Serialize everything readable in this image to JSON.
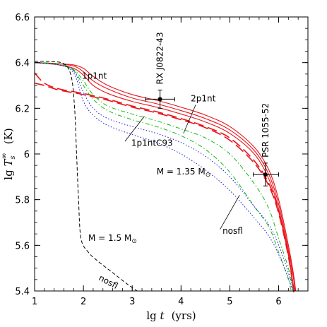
{
  "chart_data": {
    "type": "line",
    "title": "",
    "xlabel": {
      "prefix": "lg ",
      "var": "t",
      "unit": "(yrs)"
    },
    "ylabel": {
      "prefix": "lg ",
      "var": "T",
      "sub": "s",
      "sup": "∞",
      "unit": "(K)"
    },
    "xlim": [
      1,
      6.6
    ],
    "ylim": [
      5.4,
      6.6
    ],
    "xticks": [
      1,
      2,
      3,
      4,
      5,
      6
    ],
    "xtick_labels": [
      "1",
      "2",
      "3",
      "4",
      "5",
      "6"
    ],
    "yticks": [
      5.4,
      5.6,
      5.8,
      6.0,
      6.2,
      6.4,
      6.6
    ],
    "ytick_labels": [
      "5.4",
      "5.6",
      "5.8",
      "6",
      "6.2",
      "6.4",
      "6.6"
    ],
    "grid": false,
    "series": [
      {
        "name": "1p1nt",
        "color": "#e8141b",
        "dash": "",
        "width": 1.1,
        "points": [
          [
            1,
            6.4
          ],
          [
            1.5,
            6.395
          ],
          [
            1.8,
            6.39
          ],
          [
            2.0,
            6.375
          ],
          [
            2.2,
            6.34
          ],
          [
            2.5,
            6.3
          ],
          [
            3.0,
            6.26
          ],
          [
            3.5,
            6.235
          ],
          [
            4.0,
            6.205
          ],
          [
            4.5,
            6.17
          ],
          [
            5.0,
            6.12
          ],
          [
            5.5,
            6.03
          ],
          [
            5.8,
            5.93
          ],
          [
            6.0,
            5.8
          ],
          [
            6.2,
            5.6
          ],
          [
            6.3,
            5.48
          ],
          [
            6.35,
            5.4
          ]
        ]
      },
      {
        "name": "1p1nt",
        "color": "#e8141b",
        "dash": "",
        "width": 1.1,
        "points": [
          [
            1,
            6.4
          ],
          [
            1.5,
            6.395
          ],
          [
            1.8,
            6.385
          ],
          [
            2.0,
            6.36
          ],
          [
            2.2,
            6.32
          ],
          [
            2.5,
            6.285
          ],
          [
            3.0,
            6.245
          ],
          [
            3.5,
            6.22
          ],
          [
            4.0,
            6.19
          ],
          [
            4.5,
            6.155
          ],
          [
            5.0,
            6.105
          ],
          [
            5.5,
            6.015
          ],
          [
            5.8,
            5.91
          ],
          [
            6.0,
            5.78
          ],
          [
            6.2,
            5.58
          ],
          [
            6.3,
            5.46
          ],
          [
            6.34,
            5.4
          ]
        ]
      },
      {
        "name": "1p1nt",
        "color": "#e8141b",
        "dash": "",
        "width": 1.1,
        "points": [
          [
            1,
            6.4
          ],
          [
            1.5,
            6.39
          ],
          [
            1.8,
            6.375
          ],
          [
            2.0,
            6.345
          ],
          [
            2.2,
            6.3
          ],
          [
            2.5,
            6.265
          ],
          [
            3.0,
            6.23
          ],
          [
            3.5,
            6.205
          ],
          [
            4.0,
            6.175
          ],
          [
            4.5,
            6.14
          ],
          [
            5.0,
            6.09
          ],
          [
            5.5,
            6.0
          ],
          [
            5.8,
            5.89
          ],
          [
            6.0,
            5.76
          ],
          [
            6.2,
            5.56
          ],
          [
            6.28,
            5.45
          ],
          [
            6.33,
            5.4
          ]
        ]
      },
      {
        "name": "2p1nt",
        "color": "#e8141b",
        "dash": "14,6",
        "width": 1.6,
        "points": [
          [
            1,
            6.355
          ],
          [
            1.2,
            6.31
          ],
          [
            1.5,
            6.285
          ],
          [
            2.0,
            6.265
          ],
          [
            2.5,
            6.24
          ],
          [
            3.0,
            6.21
          ],
          [
            3.5,
            6.185
          ],
          [
            4.0,
            6.155
          ],
          [
            4.5,
            6.12
          ],
          [
            5.0,
            6.07
          ],
          [
            5.5,
            5.97
          ],
          [
            5.8,
            5.87
          ],
          [
            6.0,
            5.75
          ],
          [
            6.2,
            5.56
          ],
          [
            6.3,
            5.42
          ],
          [
            6.31,
            5.4
          ]
        ]
      },
      {
        "name": "2p1nt",
        "color": "#e8141b",
        "dash": "14,6",
        "width": 1.6,
        "points": [
          [
            1,
            6.31
          ],
          [
            1.2,
            6.3
          ],
          [
            1.5,
            6.28
          ],
          [
            2.0,
            6.26
          ],
          [
            2.5,
            6.235
          ],
          [
            3.0,
            6.205
          ],
          [
            3.5,
            6.18
          ],
          [
            4.0,
            6.15
          ],
          [
            4.5,
            6.115
          ],
          [
            5.0,
            6.06
          ],
          [
            5.5,
            5.96
          ],
          [
            5.8,
            5.86
          ],
          [
            6.0,
            5.74
          ],
          [
            6.2,
            5.55
          ],
          [
            6.3,
            5.41
          ],
          [
            6.3,
            5.4
          ]
        ]
      },
      {
        "name": "1p1ntC93",
        "color": "#11b811",
        "dash": "6,3,1.5,3",
        "width": 1.0,
        "points": [
          [
            1,
            6.4
          ],
          [
            1.5,
            6.395
          ],
          [
            1.8,
            6.37
          ],
          [
            2.0,
            6.32
          ],
          [
            2.2,
            6.26
          ],
          [
            2.5,
            6.21
          ],
          [
            3.0,
            6.175
          ],
          [
            3.5,
            6.145
          ],
          [
            4.0,
            6.11
          ],
          [
            4.5,
            6.07
          ],
          [
            5.0,
            6.0
          ],
          [
            5.5,
            5.87
          ],
          [
            5.8,
            5.76
          ],
          [
            6.0,
            5.63
          ],
          [
            6.2,
            5.5
          ],
          [
            6.3,
            5.4
          ]
        ]
      },
      {
        "name": "1p1ntC93",
        "color": "#11b811",
        "dash": "6,3,1.5,3",
        "width": 1.0,
        "points": [
          [
            1,
            6.4
          ],
          [
            1.5,
            6.39
          ],
          [
            1.8,
            6.365
          ],
          [
            2.0,
            6.3
          ],
          [
            2.2,
            6.24
          ],
          [
            2.5,
            6.19
          ],
          [
            3.0,
            6.15
          ],
          [
            3.5,
            6.12
          ],
          [
            4.0,
            6.08
          ],
          [
            4.5,
            6.02
          ],
          [
            5.0,
            5.92
          ],
          [
            5.5,
            5.77
          ],
          [
            5.8,
            5.68
          ],
          [
            6.0,
            5.57
          ],
          [
            6.2,
            5.45
          ],
          [
            6.25,
            5.4
          ]
        ]
      },
      {
        "name": "nosfl",
        "color": "#1717cf",
        "dash": "1.5,2.5",
        "width": 1.0,
        "points": [
          [
            1,
            6.4
          ],
          [
            1.5,
            6.39
          ],
          [
            1.8,
            6.365
          ],
          [
            2.0,
            6.27
          ],
          [
            2.2,
            6.2
          ],
          [
            2.5,
            6.155
          ],
          [
            3.0,
            6.12
          ],
          [
            3.5,
            6.09
          ],
          [
            4.0,
            6.05
          ],
          [
            4.5,
            5.99
          ],
          [
            5.0,
            5.9
          ],
          [
            5.5,
            5.77
          ],
          [
            5.8,
            5.69
          ],
          [
            6.0,
            5.6
          ],
          [
            6.2,
            5.48
          ],
          [
            6.3,
            5.4
          ]
        ]
      },
      {
        "name": "nosfl",
        "color": "#1717cf",
        "dash": "1.5,2.5",
        "width": 1.0,
        "points": [
          [
            1,
            6.4
          ],
          [
            1.5,
            6.39
          ],
          [
            1.8,
            6.355
          ],
          [
            2.0,
            6.23
          ],
          [
            2.2,
            6.17
          ],
          [
            2.5,
            6.125
          ],
          [
            3.0,
            6.085
          ],
          [
            3.5,
            6.05
          ],
          [
            4.0,
            6.0
          ],
          [
            4.5,
            5.93
          ],
          [
            5.0,
            5.84
          ],
          [
            5.5,
            5.72
          ],
          [
            5.8,
            5.64
          ],
          [
            6.0,
            5.56
          ],
          [
            6.2,
            5.46
          ],
          [
            6.28,
            5.4
          ]
        ]
      },
      {
        "name": "nosfl",
        "color": "#000000",
        "dash": "5,3",
        "width": 1.0,
        "points": [
          [
            1,
            6.405
          ],
          [
            1.3,
            6.405
          ],
          [
            1.6,
            6.395
          ],
          [
            1.75,
            6.34
          ],
          [
            1.82,
            6.2
          ],
          [
            1.86,
            6.0
          ],
          [
            1.9,
            5.8
          ],
          [
            1.95,
            5.63
          ],
          [
            2.1,
            5.57
          ],
          [
            2.3,
            5.53
          ],
          [
            2.6,
            5.48
          ],
          [
            2.9,
            5.43
          ],
          [
            3.1,
            5.4
          ]
        ]
      }
    ],
    "observations": [
      {
        "name": "RX J0822-43",
        "x": 3.57,
        "y": 6.24,
        "xerr": [
          3.27,
          3.87
        ],
        "yerr": [
          6.2,
          6.28
        ]
      },
      {
        "name": "PSR 1055-52",
        "x": 5.73,
        "y": 5.91,
        "xerr": [
          5.48,
          6.0
        ],
        "yerr": [
          5.86,
          5.96
        ]
      }
    ],
    "annotations": [
      {
        "text": "1p1nt",
        "x": 1.97,
        "y": 6.33
      },
      {
        "text": "2p1nt",
        "x": 4.2,
        "y": 6.23
      },
      {
        "text": "1p1ntC93",
        "x": 2.98,
        "y": 6.035
      },
      {
        "text": "nosfl",
        "x": 4.85,
        "y": 5.65
      },
      {
        "text": "M = 1.35 M",
        "sub": "⊙",
        "x": 3.5,
        "y": 5.91
      },
      {
        "text": "M = 1.5 M",
        "sub": "⊙",
        "x": 2.1,
        "y": 5.62
      },
      {
        "text": "nosfl",
        "x": 2.3,
        "y": 5.45,
        "rotate": 28
      }
    ]
  }
}
